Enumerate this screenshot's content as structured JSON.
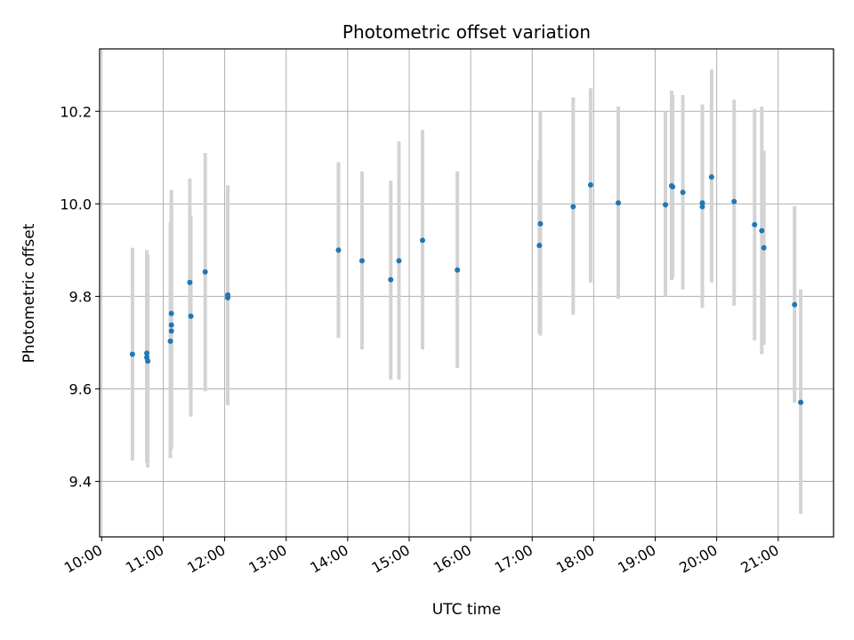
{
  "chart_data": {
    "type": "scatter",
    "title": "Photometric offset variation",
    "xlabel": "UTC time",
    "ylabel": "Photometric offset",
    "xlim": [
      "09:58",
      "21:54"
    ],
    "ylim": [
      9.28,
      10.335
    ],
    "x_ticks": [
      "10:00",
      "11:00",
      "12:00",
      "13:00",
      "14:00",
      "15:00",
      "16:00",
      "17:00",
      "18:00",
      "19:00",
      "20:00",
      "21:00"
    ],
    "y_ticks": [
      9.4,
      9.6,
      9.8,
      10.0,
      10.2
    ],
    "y_tick_labels": [
      "9.4",
      "9.6",
      "9.8",
      "10.0",
      "10.2"
    ],
    "grid": true,
    "marker_color": "#1f77b4",
    "errorbar_color": "#d3d3d3",
    "points": [
      {
        "time": "10:30",
        "y": 9.675,
        "lo": 9.445,
        "hi": 9.905
      },
      {
        "time": "10:44",
        "y": 9.677,
        "lo": 9.445,
        "hi": 9.9
      },
      {
        "time": "10:44",
        "y": 9.668,
        "lo": 9.44,
        "hi": 9.895
      },
      {
        "time": "10:45",
        "y": 9.66,
        "lo": 9.43,
        "hi": 9.89
      },
      {
        "time": "11:08",
        "y": 9.763,
        "lo": 9.495,
        "hi": 10.03
      },
      {
        "time": "11:08",
        "y": 9.738,
        "lo": 9.48,
        "hi": 9.995
      },
      {
        "time": "11:08",
        "y": 9.725,
        "lo": 9.47,
        "hi": 9.98
      },
      {
        "time": "11:07",
        "y": 9.703,
        "lo": 9.45,
        "hi": 9.96
      },
      {
        "time": "11:26",
        "y": 9.83,
        "lo": 9.6,
        "hi": 10.055
      },
      {
        "time": "11:27",
        "y": 9.757,
        "lo": 9.54,
        "hi": 9.975
      },
      {
        "time": "11:41",
        "y": 9.853,
        "lo": 9.595,
        "hi": 10.11
      },
      {
        "time": "12:03",
        "y": 9.803,
        "lo": 9.565,
        "hi": 10.04
      },
      {
        "time": "12:03",
        "y": 9.797,
        "lo": 9.565,
        "hi": 10.035
      },
      {
        "time": "13:51",
        "y": 9.9,
        "lo": 9.71,
        "hi": 10.09
      },
      {
        "time": "14:14",
        "y": 9.877,
        "lo": 9.685,
        "hi": 10.07
      },
      {
        "time": "14:42",
        "y": 9.836,
        "lo": 9.62,
        "hi": 10.05
      },
      {
        "time": "14:50",
        "y": 9.877,
        "lo": 9.62,
        "hi": 10.135
      },
      {
        "time": "15:13",
        "y": 9.921,
        "lo": 9.685,
        "hi": 10.16
      },
      {
        "time": "15:47",
        "y": 9.857,
        "lo": 9.645,
        "hi": 10.07
      },
      {
        "time": "17:07",
        "y": 9.91,
        "lo": 9.72,
        "hi": 10.095
      },
      {
        "time": "17:08",
        "y": 9.957,
        "lo": 9.715,
        "hi": 10.2
      },
      {
        "time": "17:40",
        "y": 9.994,
        "lo": 9.76,
        "hi": 10.23
      },
      {
        "time": "17:57",
        "y": 10.041,
        "lo": 9.83,
        "hi": 10.25
      },
      {
        "time": "18:24",
        "y": 10.002,
        "lo": 9.795,
        "hi": 10.21
      },
      {
        "time": "19:10",
        "y": 9.998,
        "lo": 9.8,
        "hi": 10.2
      },
      {
        "time": "19:16",
        "y": 10.039,
        "lo": 9.835,
        "hi": 10.245
      },
      {
        "time": "19:17",
        "y": 10.037,
        "lo": 9.84,
        "hi": 10.235
      },
      {
        "time": "19:27",
        "y": 10.025,
        "lo": 9.815,
        "hi": 10.235
      },
      {
        "time": "19:46",
        "y": 10.002,
        "lo": 9.785,
        "hi": 10.215
      },
      {
        "time": "19:46",
        "y": 9.994,
        "lo": 9.775,
        "hi": 10.21
      },
      {
        "time": "19:55",
        "y": 10.058,
        "lo": 9.83,
        "hi": 10.29
      },
      {
        "time": "20:17",
        "y": 10.005,
        "lo": 9.78,
        "hi": 10.225
      },
      {
        "time": "20:37",
        "y": 9.955,
        "lo": 9.705,
        "hi": 10.205
      },
      {
        "time": "20:44",
        "y": 9.942,
        "lo": 9.675,
        "hi": 10.21
      },
      {
        "time": "20:46",
        "y": 9.905,
        "lo": 9.695,
        "hi": 10.115
      },
      {
        "time": "21:16",
        "y": 9.782,
        "lo": 9.57,
        "hi": 9.995
      },
      {
        "time": "21:22",
        "y": 9.571,
        "lo": 9.33,
        "hi": 9.815
      }
    ]
  }
}
